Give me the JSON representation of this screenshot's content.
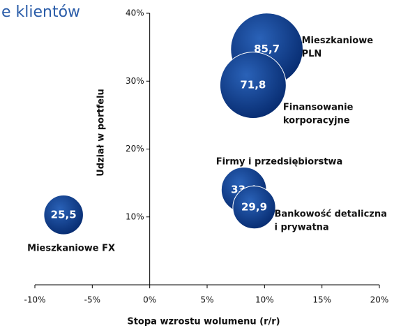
{
  "chart_data": {
    "type": "scatter",
    "title": "e klientów",
    "xlabel": "Stopa wzrostu wolumenu (r/r)",
    "ylabel": "Udział w portfelu",
    "xlim": [
      -10,
      20
    ],
    "ylim": [
      0,
      40
    ],
    "xticks": [
      {
        "value": -10,
        "label": "-10%"
      },
      {
        "value": -5,
        "label": "-5%"
      },
      {
        "value": 0,
        "label": "0%"
      },
      {
        "value": 5,
        "label": "5%"
      },
      {
        "value": 10,
        "label": "10%"
      },
      {
        "value": 15,
        "label": "15%"
      },
      {
        "value": 20,
        "label": "20%"
      }
    ],
    "yticks": [
      {
        "value": 10,
        "label": "10%"
      },
      {
        "value": 20,
        "label": "20%"
      },
      {
        "value": 30,
        "label": "30%"
      },
      {
        "value": 40,
        "label": "40%"
      }
    ],
    "color": "#0b3c8c",
    "labels": [
      [
        "Mieszkaniowe",
        "PLN"
      ],
      [
        "Finansowanie",
        "korporacyjne"
      ],
      [
        "Firmy i przedsiębiorstwa"
      ],
      [
        "Bankowość detaliczna",
        "i prywatna"
      ],
      [
        "Mieszkaniowe FX"
      ]
    ],
    "x": [
      10.2,
      9.0,
      8.2,
      9.1,
      -7.5
    ],
    "values": [
      34.7,
      29.4,
      14.0,
      11.4,
      10.3
    ],
    "sizes": [
      85.7,
      71.8,
      33.4,
      29.9,
      25.5
    ],
    "size_labels": [
      "85,7",
      "71,8",
      "33,4",
      "29,9",
      "25,5"
    ]
  }
}
